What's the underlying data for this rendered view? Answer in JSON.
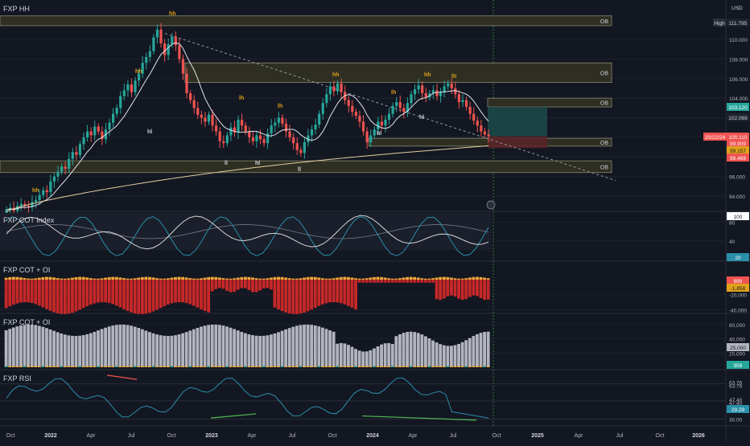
{
  "currency": "USD",
  "panes": {
    "price_title": "FXP HH",
    "cot_index_title": "FXP COT Index",
    "cot_oi_title_1": "FXP COT + OI",
    "cot_oi_title_2": "FXP COT + OI",
    "rsi_title": "FXP RSI"
  },
  "x_axis": [
    "Oct",
    "2022",
    "Apr",
    "Jul",
    "Oct",
    "2023",
    "Apr",
    "Jul",
    "Oct",
    "2024",
    "Apr",
    "Jul",
    "Oct",
    "2025",
    "Apr",
    "Jul",
    "Oct",
    "2026"
  ],
  "price_axis": [
    "110.000",
    "108.000",
    "106.000",
    "104.000",
    "96.000",
    "94.000"
  ],
  "price_badges": {
    "high_label": "High",
    "high_value": "111.795",
    "b1": "103.120",
    "b2": "102.069",
    "last": "100.110",
    "date": "20/22/24",
    "b4": "99.909",
    "b5": "99.157",
    "b6": "98.469"
  },
  "ob_label": "OB",
  "cot_index_axis": [
    "80",
    "40"
  ],
  "cot_index_badges": {
    "top": "100",
    "bottom": "20"
  },
  "cot_oi_axis": [
    "-20,000",
    "-40,000"
  ],
  "cot_oi_badges": {
    "a": "899",
    "b": "-1,858"
  },
  "cot_oi2_axis": [
    "60,000",
    "40,000",
    "20,000"
  ],
  "cot_oi2_badges": {
    "a": "25,000",
    "b": "959"
  },
  "rsi_axis": [
    "63.76",
    "63.76",
    "47.40",
    "47.40",
    "30.00"
  ],
  "rsi_badges": {
    "a": "63.76",
    "b": "29.29"
  },
  "pivot_labels": [
    "hh",
    "hh",
    "hl",
    "lh",
    "ll",
    "lh",
    "hl",
    "ll",
    "hh",
    "hl",
    "lh",
    "hh",
    "lh",
    "hl",
    "hh"
  ],
  "chart_data": {
    "type": "candlestick",
    "title": "FXP HH",
    "x_axis_ticks": [
      "Oct",
      "2022",
      "Apr",
      "Jul",
      "Oct",
      "2023",
      "Apr",
      "Jul",
      "Oct",
      "2024",
      "Apr",
      "Jul",
      "Oct",
      "2025",
      "Apr",
      "Jul",
      "Oct",
      "2026"
    ],
    "y_axis_ticks": [
      110,
      108,
      106,
      104,
      96,
      94
    ],
    "y_range": [
      92.2,
      112.4
    ],
    "closes": [
      92.6,
      92.8,
      92.5,
      93.0,
      93.2,
      93.0,
      92.9,
      93.4,
      93.6,
      94.1,
      94.6,
      94.4,
      95.5,
      96.0,
      96.5,
      97.0,
      96.8,
      97.8,
      98.5,
      98.2,
      99.3,
      100.0,
      100.6,
      100.2,
      101.1,
      100.6,
      99.8,
      100.8,
      101.5,
      102.4,
      103.0,
      104.2,
      104.8,
      105.4,
      104.6,
      105.8,
      106.5,
      107.6,
      108.2,
      108.8,
      110.2,
      111.0,
      109.6,
      108.4,
      109.5,
      110.3,
      109.4,
      108.0,
      106.5,
      104.5,
      103.8,
      103.0,
      102.3,
      102.0,
      101.6,
      102.3,
      101.2,
      100.6,
      99.6,
      99.4,
      100.2,
      101.0,
      100.5,
      101.8,
      101.2,
      100.6,
      100.0,
      99.6,
      100.2,
      99.8,
      99.4,
      100.4,
      101.2,
      101.5,
      102.0,
      101.4,
      100.6,
      100.0,
      99.4,
      98.7,
      98.4,
      99.5,
      100.2,
      100.8,
      101.3,
      102.4,
      103.5,
      104.4,
      105.2,
      104.7,
      105.5,
      104.6,
      103.8,
      103.2,
      102.6,
      102.2,
      101.6,
      100.6,
      99.5,
      100.2,
      100.8,
      101.6,
      101.2,
      101.8,
      102.4,
      103.2,
      103.6,
      103.0,
      102.6,
      103.5,
      104.4,
      104.9,
      105.3,
      104.5,
      104.1,
      104.5,
      104.8,
      104.2,
      104.6,
      105.2,
      105.5,
      105.0,
      104.4,
      103.6,
      103.8,
      103.1,
      102.4,
      101.7,
      101.2,
      100.6,
      100.3,
      100.11
    ],
    "overlays": {
      "moving_average_long_end": 99.16,
      "trendline": {
        "from": [
          110.3,
          "2022-10"
        ],
        "to": [
          96.0,
          "2025-04"
        ]
      }
    },
    "order_blocks": [
      {
        "label": "OB",
        "range": [
          111.4,
          112.4
        ]
      },
      {
        "label": "OB",
        "range": [
          105.6,
          107.6
        ]
      },
      {
        "label": "OB",
        "range": [
          103.1,
          104.0
        ]
      },
      {
        "label": "OB",
        "range": [
          99.1,
          99.9
        ]
      },
      {
        "label": "OB",
        "range": [
          96.4,
          97.6
        ]
      }
    ],
    "sub_panes": [
      {
        "name": "FXP COT Index",
        "type": "line",
        "ticks": [
          80,
          40
        ]
      },
      {
        "name": "FXP COT + OI",
        "type": "bar",
        "ticks": [
          -20000,
          -40000
        ]
      },
      {
        "name": "FXP COT + OI",
        "type": "bar",
        "ticks": [
          60000,
          40000,
          20000
        ]
      },
      {
        "name": "FXP RSI",
        "type": "line",
        "ticks": [
          63.76,
          47.4,
          30.0
        ]
      }
    ]
  },
  "colors": {
    "bull": "#26a69a",
    "bear": "#ef5350",
    "bg": "#131722",
    "ob_fill": "#2e2f22",
    "ob_border": "#8a8a70",
    "label": "#e0a21a",
    "bars_red": "#c62828",
    "bars_orange": "#f2a93b",
    "bars_gray": "#b2b5be",
    "rsi": "#2a8fa8",
    "cot_white": "#d6d6d6",
    "cot_blue": "#2a8fa8"
  }
}
